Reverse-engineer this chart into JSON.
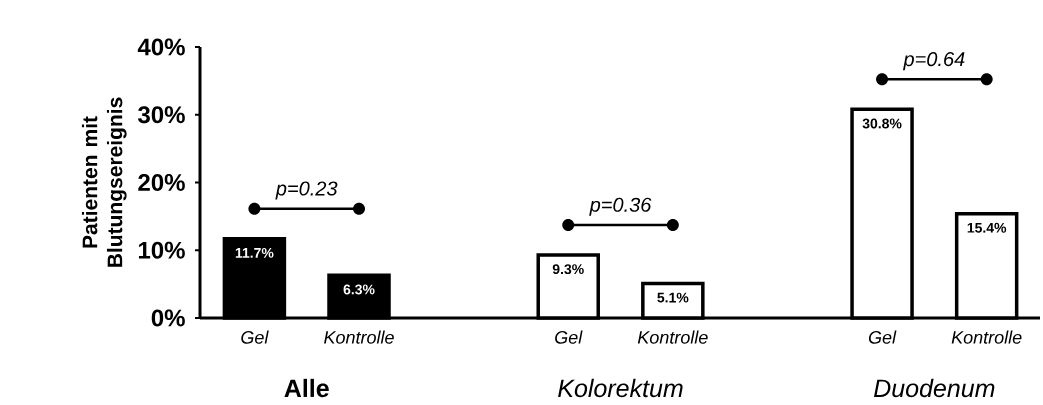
{
  "chart_data": {
    "type": "bar",
    "ylabel": "Patienten mit Blutungsereignis",
    "categories": [
      "Gel",
      "Kontrolle",
      null,
      "Gel",
      "Kontrolle",
      null,
      "Gel",
      "Kontrolle"
    ],
    "values": [
      11.7,
      6.3,
      null,
      9.3,
      5.1,
      null,
      30.8,
      15.4
    ],
    "colors": [
      "#000000",
      "#000000",
      null,
      "#ffffff",
      "#ffffff",
      null,
      "#ffffff",
      "#ffffff"
    ],
    "value_labels": [
      "11.7%",
      "6.3%",
      null,
      "9.3%",
      "5.1%",
      null,
      "30.8%",
      "15.4%"
    ],
    "ylim": [
      0,
      40
    ],
    "yticks": [
      {
        "value": 0,
        "label": "0%"
      },
      {
        "value": 10,
        "label": "10%"
      },
      {
        "value": 20,
        "label": "20%"
      },
      {
        "value": 30,
        "label": "30%"
      },
      {
        "value": 40,
        "label": "40%"
      }
    ],
    "annotations": [
      "Alle",
      "Kolorektum",
      "Duodenum",
      "p=0.23",
      "p=0.36",
      "p=0.64"
    ]
  }
}
